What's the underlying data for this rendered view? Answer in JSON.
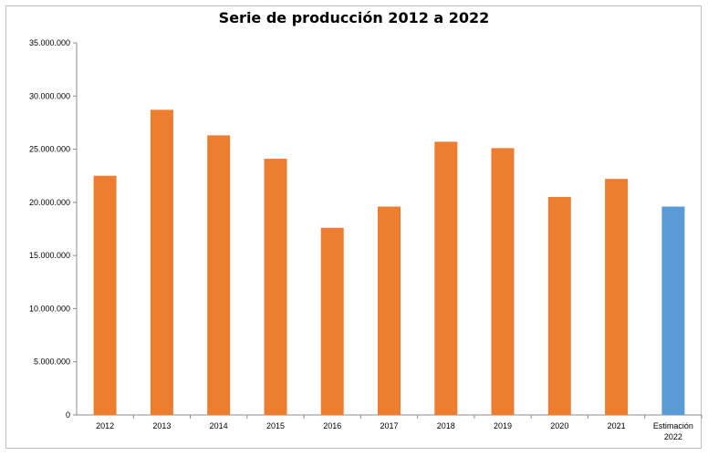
{
  "chart_data": {
    "type": "bar",
    "title": "Serie de producción 2012 a 2022",
    "categories": [
      "2012",
      "2013",
      "2014",
      "2015",
      "2016",
      "2017",
      "2018",
      "2019",
      "2020",
      "2021",
      "Estimación 2022"
    ],
    "values": [
      22500000,
      28700000,
      26300000,
      24100000,
      17600000,
      19600000,
      25700000,
      25100000,
      20500000,
      22200000,
      19600000
    ],
    "bar_colors": [
      "#ed7d31",
      "#ed7d31",
      "#ed7d31",
      "#ed7d31",
      "#ed7d31",
      "#ed7d31",
      "#ed7d31",
      "#ed7d31",
      "#ed7d31",
      "#ed7d31",
      "#5b9bd5"
    ],
    "ylim": [
      0,
      35000000
    ],
    "y_ticks": [
      0,
      5000000,
      10000000,
      15000000,
      20000000,
      25000000,
      30000000,
      35000000
    ],
    "y_tick_labels": [
      "0",
      "5.000.000",
      "10.000.000",
      "15.000.000",
      "20.000.000",
      "25.000.000",
      "30.000.000",
      "35.000.000"
    ],
    "grid": false,
    "xlabel": "",
    "ylabel": ""
  }
}
